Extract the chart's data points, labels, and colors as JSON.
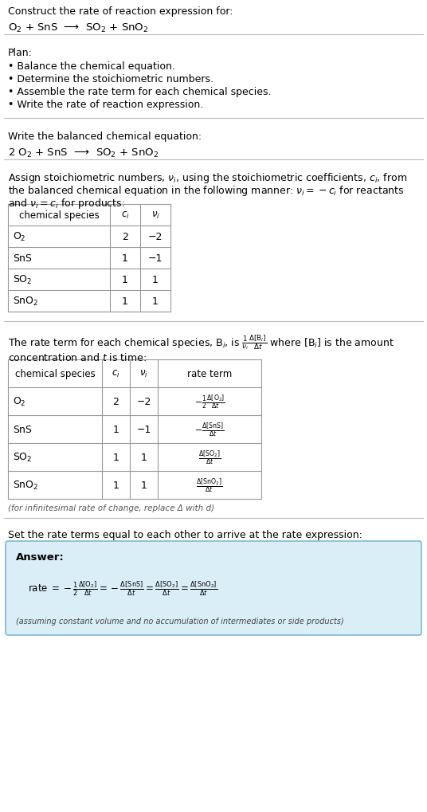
{
  "title_line1": "Construct the rate of reaction expression for:",
  "reaction_unbalanced": "O$_2$ + SnS  ⟶  SO$_2$ + SnO$_2$",
  "plan_header": "Plan:",
  "plan_items": [
    "• Balance the chemical equation.",
    "• Determine the stoichiometric numbers.",
    "• Assemble the rate term for each chemical species.",
    "• Write the rate of reaction expression."
  ],
  "balanced_header": "Write the balanced chemical equation:",
  "reaction_balanced": "2 O$_2$ + SnS  ⟶  SO$_2$ + SnO$_2$",
  "stoich_intro_1": "Assign stoichiometric numbers, $\\nu_i$, using the stoichiometric coefficients, $c_i$, from",
  "stoich_intro_2": "the balanced chemical equation in the following manner: $\\nu_i = -c_i$ for reactants",
  "stoich_intro_3": "and $\\nu_i = c_i$ for products:",
  "table1_headers": [
    "chemical species",
    "$c_i$",
    "$\\nu_i$"
  ],
  "table1_rows": [
    [
      "O$_2$",
      "2",
      "−2"
    ],
    [
      "SnS",
      "1",
      "−1"
    ],
    [
      "SO$_2$",
      "1",
      "1"
    ],
    [
      "SnO$_2$",
      "1",
      "1"
    ]
  ],
  "rate_intro_1": "The rate term for each chemical species, B$_i$, is $\\frac{1}{\\nu_i}\\frac{\\Delta[\\mathrm{B}_i]}{\\Delta t}$ where [B$_i$] is the amount",
  "rate_intro_2": "concentration and $t$ is time:",
  "table2_headers": [
    "chemical species",
    "$c_i$",
    "$\\nu_i$",
    "rate term"
  ],
  "table2_rows": [
    [
      "O$_2$",
      "2",
      "−2",
      "$-\\frac{1}{2}\\frac{\\Delta[\\mathrm{O_2}]}{\\Delta t}$"
    ],
    [
      "SnS",
      "1",
      "−1",
      "$-\\frac{\\Delta[\\mathrm{SnS}]}{\\Delta t}$"
    ],
    [
      "SO$_2$",
      "1",
      "1",
      "$\\frac{\\Delta[\\mathrm{SO_2}]}{\\Delta t}$"
    ],
    [
      "SnO$_2$",
      "1",
      "1",
      "$\\frac{\\Delta[\\mathrm{SnO_2}]}{\\Delta t}$"
    ]
  ],
  "infinitesimal_note": "(for infinitesimal rate of change, replace Δ with d)",
  "set_equal_text": "Set the rate terms equal to each other to arrive at the rate expression:",
  "answer_label": "Answer:",
  "answer_expr": "rate $= -\\frac{1}{2}\\frac{\\Delta[\\mathrm{O_2}]}{\\Delta t} = -\\frac{\\Delta[\\mathrm{SnS}]}{\\Delta t} = \\frac{\\Delta[\\mathrm{SO_2}]}{\\Delta t} = \\frac{\\Delta[\\mathrm{SnO_2}]}{\\Delta t}$",
  "answer_note": "(assuming constant volume and no accumulation of intermediates or side products)",
  "answer_bg_color": "#daeef8",
  "answer_border_color": "#7fb8d4",
  "bg_color": "#ffffff",
  "text_color": "#000000",
  "table_border_color": "#999999",
  "separator_color": "#bbbbbb",
  "fig_width": 5.36,
  "fig_height": 10.2,
  "dpi": 100
}
